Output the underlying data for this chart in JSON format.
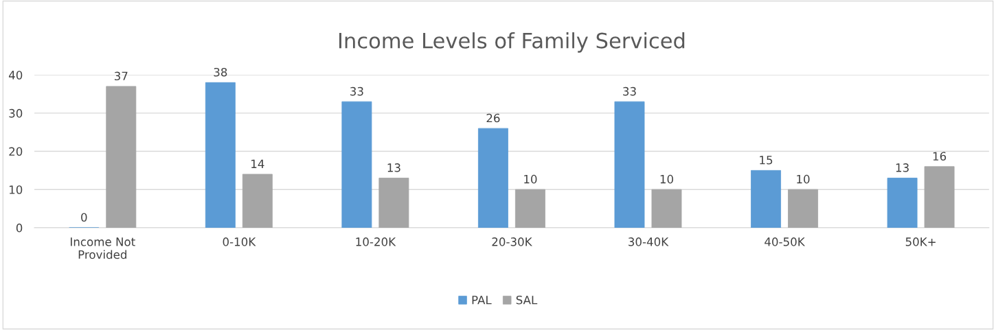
{
  "chart_data": {
    "type": "bar",
    "title": "Income Levels of Family Serviced",
    "categories": [
      "Income Not\nProvided",
      "0-10K",
      "10-20K",
      "20-30K",
      "30-40K",
      "40-50K",
      "50K+"
    ],
    "series": [
      {
        "name": "PAL",
        "color": "#5b9bd5",
        "values": [
          0,
          38,
          33,
          26,
          33,
          15,
          13
        ]
      },
      {
        "name": "SAL",
        "color": "#a5a5a5",
        "values": [
          37,
          14,
          13,
          10,
          10,
          10,
          16
        ]
      }
    ],
    "ylim": [
      0,
      40
    ],
    "yticks": [
      0,
      10,
      20,
      30,
      40
    ],
    "grid": "y",
    "legend": "bottom",
    "data_labels": true
  }
}
